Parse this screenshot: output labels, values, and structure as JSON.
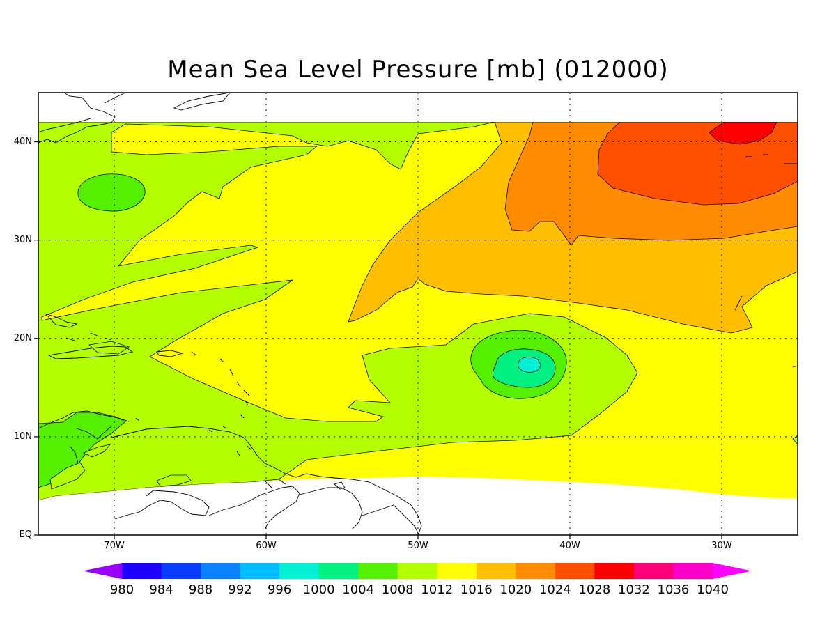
{
  "title": "Mean Sea Level Pressure [mb] (012000)",
  "map": {
    "lon_range": [
      -75,
      -25
    ],
    "lat_range": [
      0,
      45
    ],
    "lat_ticks": [
      {
        "label": "40N",
        "value": 40
      },
      {
        "label": "30N",
        "value": 30
      },
      {
        "label": "20N",
        "value": 20
      },
      {
        "label": "10N",
        "value": 10
      },
      {
        "label": "EQ",
        "value": 0
      }
    ],
    "lon_ticks": [
      {
        "label": "70W",
        "value": -70
      },
      {
        "label": "60W",
        "value": -60
      },
      {
        "label": "50W",
        "value": -50
      },
      {
        "label": "40W",
        "value": -40
      },
      {
        "label": "30W",
        "value": -30
      }
    ],
    "gridlines": "dotted",
    "background_field": "1012"
  },
  "colorbar": {
    "labels": [
      "980",
      "984",
      "988",
      "992",
      "996",
      "1000",
      "1004",
      "1008",
      "1012",
      "1016",
      "1020",
      "1024",
      "1028",
      "1032",
      "1036",
      "1040"
    ],
    "colors": [
      "#9900ff",
      "#1e00ff",
      "#0a3cff",
      "#0a82ff",
      "#00bfff",
      "#00f0d4",
      "#00f082",
      "#54f000",
      "#b4ff00",
      "#ffff00",
      "#ffbf00",
      "#ff8c00",
      "#ff5000",
      "#ff0000",
      "#ff007a",
      "#ff00c8",
      "#ff00ff"
    ],
    "extend": "both"
  }
}
